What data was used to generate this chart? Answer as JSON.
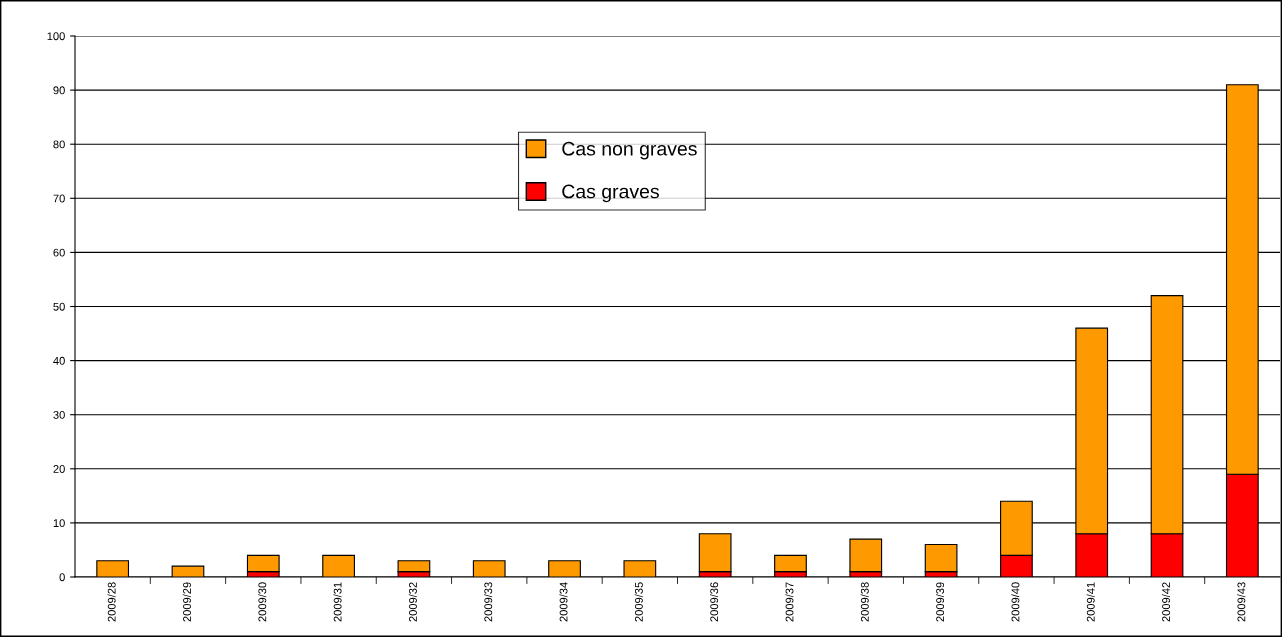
{
  "chart_data": {
    "type": "bar",
    "stacked": true,
    "categories": [
      "2009/28",
      "2009/29",
      "2009/30",
      "2009/31",
      "2009/32",
      "2009/33",
      "2009/34",
      "2009/35",
      "2009/36",
      "2009/37",
      "2009/38",
      "2009/39",
      "2009/40",
      "2009/41",
      "2009/42",
      "2009/43"
    ],
    "series": [
      {
        "name": "Cas graves",
        "color": "#ff0000",
        "values": [
          0,
          0,
          1,
          0,
          1,
          0,
          0,
          0,
          1,
          1,
          1,
          1,
          4,
          8,
          8,
          19
        ]
      },
      {
        "name": "Cas non graves",
        "color": "#ff9900",
        "values": [
          3,
          2,
          3,
          4,
          2,
          3,
          3,
          3,
          7,
          3,
          6,
          5,
          10,
          38,
          44,
          72
        ]
      }
    ],
    "ylim": [
      0,
      100
    ],
    "yticks": [
      0,
      10,
      20,
      30,
      40,
      50,
      60,
      70,
      80,
      90,
      100
    ],
    "grid": "y",
    "legend": "top"
  }
}
